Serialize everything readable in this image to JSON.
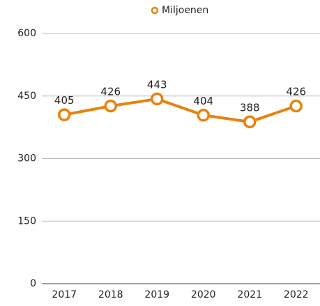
{
  "chart_data": {
    "type": "line",
    "categories": [
      "2017",
      "2018",
      "2019",
      "2020",
      "2021",
      "2022"
    ],
    "series": [
      {
        "name": "Miljoenen",
        "color": "#e8820c",
        "values": [
          405,
          426,
          443,
          404,
          388,
          426
        ]
      }
    ],
    "ylim": [
      0,
      600
    ],
    "yticks": [
      0,
      150,
      300,
      450,
      600
    ],
    "grid": true,
    "legend": "top"
  }
}
